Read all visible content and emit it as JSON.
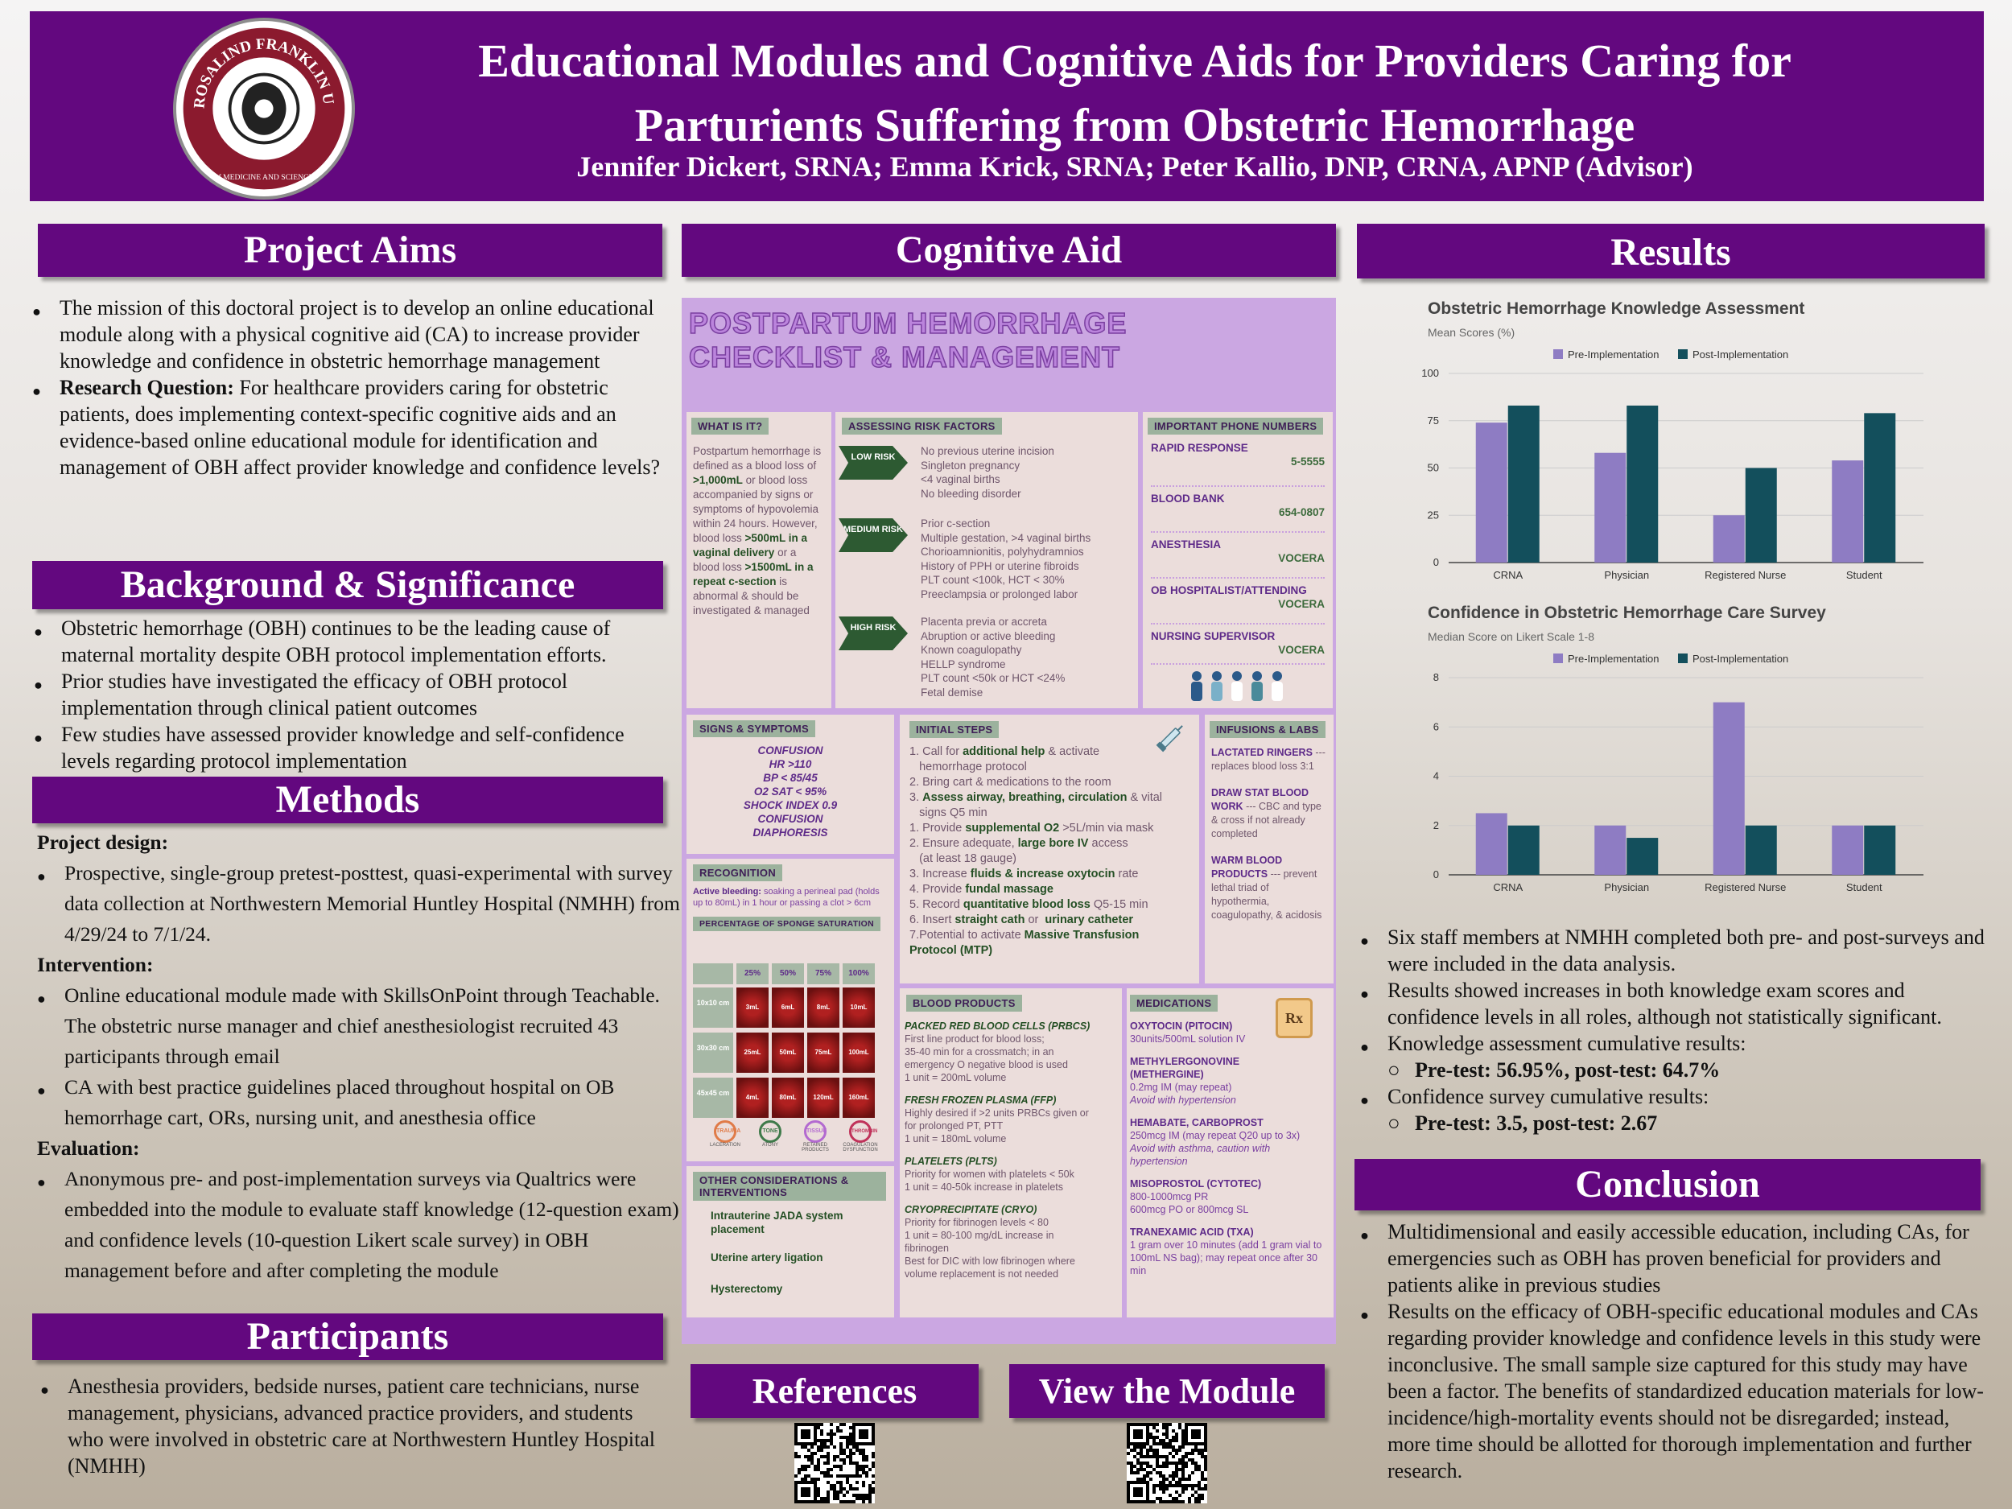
{
  "header": {
    "title_line1": "Educational Modules and Cognitive Aids for Providers Caring for",
    "title_line2": "Parturients Suffering from Obstetric Hemorrhage",
    "authors": "Jennifer Dickert, SRNA; Emma Krick, SRNA; Peter Kallio, DNP, CRNA, APNP (Advisor)",
    "seal_text": "ROSALIND FRANKLIN UNIVERSITY",
    "seal_sub": "of MEDICINE AND SCIENCE",
    "colors": {
      "primary": "#63087f",
      "seal": "#8b1a2e"
    }
  },
  "project_aims": {
    "heading": "Project Aims",
    "mission": "The mission of this doctoral project is to develop an online educational module along with a physical cognitive aid (CA) to increase provider knowledge and confidence in obstetric hemorrhage management",
    "rq_label": "Research Question:",
    "rq_text": " For healthcare providers caring for obstetric patients, does implementing context-specific cognitive aids and an evidence-based online educational module for identification and management of OBH affect provider knowledge and confidence levels?"
  },
  "background": {
    "heading": "Background & Significance",
    "items": [
      "Obstetric hemorrhage (OBH) continues to be the leading cause of maternal mortality despite OBH protocol implementation efforts.",
      "Prior studies have investigated the efficacy of OBH protocol implementation through clinical patient outcomes",
      "Few studies have assessed provider knowledge and self-confidence levels regarding protocol implementation"
    ]
  },
  "methods": {
    "heading": "Methods",
    "design_label": "Project design:",
    "design": "Prospective, single-group pretest-posttest, quasi-experimental with survey data collection at Northwestern Memorial Huntley Hospital (NMHH) from 4/29/24 to 7/1/24.",
    "intervention_label": "Intervention:",
    "intervention": [
      "Online educational module made with SkillsOnPoint through Teachable. The obstetric nurse manager and chief anesthesiologist recruited 43 participants through email",
      "CA with best practice guidelines placed throughout hospital on OB hemorrhage cart, ORs, nursing unit, and anesthesia office"
    ],
    "evaluation_label": "Evaluation:",
    "evaluation": "Anonymous pre- and post-implementation surveys via Qualtrics were embedded into the module to evaluate staff knowledge (12-question exam) and confidence levels (10-question Likert scale survey) in OBH management before and after completing the module"
  },
  "participants": {
    "heading": "Participants",
    "text": "Anesthesia providers, bedside nurses, patient care technicians, nurse management, physicians, advanced practice providers, and students who were involved in obstetric care at Northwestern Huntley Hospital (NMHH)"
  },
  "cognitive_aid": {
    "heading": "Cognitive Aid",
    "title_line1": "POSTPARTUM HEMORRHAGE",
    "title_line2": "CHECKLIST & MANAGEMENT",
    "what": {
      "tag": "WHAT IS IT?",
      "t1": "Postpartum hemorrhage is defined as a blood loss of ",
      "b1": ">1,000mL",
      "t2": " or blood loss accompanied by signs or symptoms of hypovolemia within 24 hours. However, blood loss ",
      "b2": ">500mL in a vaginal delivery",
      "t3": " or a blood loss ",
      "b3": ">1500mL in a repeat c-section",
      "t4": " is abnormal & should be investigated & managed"
    },
    "risk": {
      "tag": "ASSESSING RISK FACTORS",
      "low": {
        "label": "LOW RISK",
        "items": [
          "No previous uterine incision",
          "Singleton pregnancy",
          "<4 vaginal births",
          "No bleeding disorder"
        ]
      },
      "medium": {
        "label": "MEDIUM RISK",
        "items": [
          "Prior c-section",
          "Multiple gestation, >4 vaginal births",
          "Chorioamnionitis, polyhydramnios",
          "History of PPH or uterine fibroids",
          "PLT count <100k, HCT < 30%",
          "Preeclampsia or prolonged labor"
        ]
      },
      "high": {
        "label": "HIGH RISK",
        "items": [
          "Placenta previa or accreta",
          "Abruption or active bleeding",
          "Known coagulopathy",
          "HELLP syndrome",
          "PLT count <50k or HCT <24%",
          "Fetal demise"
        ]
      }
    },
    "phones": {
      "tag": "IMPORTANT PHONE NUMBERS",
      "items": [
        {
          "label": "RAPID RESPONSE",
          "value": "5-5555"
        },
        {
          "label": "BLOOD BANK",
          "value": "654-0807"
        },
        {
          "label": "ANESTHESIA",
          "value": "VOCERA"
        },
        {
          "label": "OB HOSPITALIST/ATTENDING",
          "value": "VOCERA"
        },
        {
          "label": "NURSING SUPERVISOR",
          "value": "VOCERA"
        }
      ]
    },
    "signs": {
      "tag": "SIGNS & SYMPTOMS",
      "items": [
        "CONFUSION",
        "HR >110",
        "BP < 85/45",
        "O2 SAT < 95%",
        "SHOCK INDEX 0.9",
        "CONFUSION",
        "DIAPHORESIS"
      ]
    },
    "initial": {
      "tag": "INITIAL STEPS",
      "lines": [
        [
          "1. Call for ",
          "additional help",
          " & activate"
        ],
        [
          "   hemorrhage protocol",
          "",
          ""
        ],
        [
          "2. Bring cart & medications to the room",
          "",
          ""
        ],
        [
          "3. ",
          "Assess airway, breathing, circulation",
          " & vital"
        ],
        [
          "   signs Q5 min",
          "",
          ""
        ],
        [
          "1. Provide ",
          "supplemental O2",
          " >5L/min via mask"
        ],
        [
          "2. Ensure adequate, ",
          "large bore IV",
          " access"
        ],
        [
          "   (at least 18 gauge)",
          "",
          ""
        ],
        [
          "3. Increase ",
          "fluids & increase oxytocin",
          " rate"
        ],
        [
          "4. Provide ",
          "fundal massage",
          ""
        ],
        [
          "5. Record ",
          "quantitative blood loss",
          " Q5-15 min"
        ],
        [
          "6. Insert ",
          "straight cath",
          " or  "
        ],
        [
          "7.Potential to activate ",
          "Massive Transfusion",
          ""
        ],
        [
          "",
          "Protocol (MTP)",
          ""
        ]
      ],
      "extra": "urinary catheter"
    },
    "infusions": {
      "tag": "INFUSIONS & LABS",
      "items": [
        {
          "name": "LACTATED RINGERS",
          "desc": "--- replaces blood loss 3:1"
        },
        {
          "name": "DRAW STAT BLOOD WORK",
          "desc": "--- CBC and type & cross if not already completed"
        },
        {
          "name": "WARM BLOOD PRODUCTS",
          "desc": "--- prevent lethal triad of hypothermia, coagulopathy, & acidosis"
        }
      ]
    },
    "recognition": {
      "tag": "RECOGNITION",
      "label": "Active bleeding:",
      "text": " soaking  a perineal pad (holds up to 80mL) in 1 hour or passing a clot > 6cm",
      "sponge_tag": "PERCENTAGE OF SPONGE SATURATION",
      "cols": [
        "25%",
        "50%",
        "75%",
        "100%"
      ],
      "rows": [
        {
          "label": "10x10 cm",
          "cells": [
            "3mL",
            "6mL",
            "8mL",
            "10mL"
          ]
        },
        {
          "label": "30x30 cm",
          "cells": [
            "25mL",
            "50mL",
            "75mL",
            "100mL"
          ]
        },
        {
          "label": "45x45 cm",
          "cells": [
            "4mL",
            "80mL",
            "120mL",
            "160mL"
          ]
        }
      ],
      "t_tags": [
        "TRAUMA",
        "TONE",
        "TISSUE",
        "THROMBIN"
      ],
      "t_sub": [
        "LACERATION",
        "ATONY",
        "RETAINED PRODUCTS",
        "COAGULATION DYSFUNCTION"
      ]
    },
    "other": {
      "tag": "OTHER CONSIDERATIONS & INTERVENTIONS",
      "items": [
        "Intrauterine JADA  system placement",
        "Uterine artery ligation",
        "Hysterectomy"
      ]
    },
    "blood": {
      "tag": "BLOOD PRODUCTS",
      "items": [
        {
          "name": "PACKED RED BLOOD CELLS (PRBCS)",
          "lines": [
            "First line product for blood loss;",
            "35-40 min for a crossmatch; in an",
            "emergency O negative blood is used",
            "1 unit = 200mL volume"
          ]
        },
        {
          "name": "FRESH FROZEN PLASMA (FFP)",
          "lines": [
            "Highly desired if >2 units PRBCs given or",
            "for prolonged PT, PTT",
            "1 unit = 180mL volume"
          ]
        },
        {
          "name": "PLATELETS (PLTS)",
          "lines": [
            "Priority for women with platelets < 50k",
            "1 unit = 40-50k increase in platelets"
          ]
        },
        {
          "name": "CRYOPRECIPITATE (CRYO)",
          "lines": [
            "Priority for fibrinogen levels < 80",
            "1 unit = 80-100 mg/dL increase in",
            "fibrinogen",
            "Best for DIC with low fibrinogen where",
            "volume replacement is not needed"
          ]
        }
      ]
    },
    "meds": {
      "tag": "MEDICATIONS",
      "items": [
        {
          "name": "OXYTOCIN (PITOCIN)",
          "lines": [
            "30units/500mL solution IV"
          ],
          "warn": ""
        },
        {
          "name": "METHYLERGONOVINE (METHERGINE)",
          "lines": [
            "0.2mg IM (may repeat)"
          ],
          "warn": "Avoid with hypertension"
        },
        {
          "name": "HEMABATE, CARBOPROST",
          "lines": [
            "250mcg IM (may repeat Q20 up to 3x)"
          ],
          "warn": "Avoid with asthma, caution with hypertension"
        },
        {
          "name": "MISOPROSTOL (CYTOTEC)",
          "lines": [
            "800-1000mcg PR",
            "600mcg PO or  800mcg SL"
          ],
          "warn": ""
        },
        {
          "name": "TRANEXAMIC ACID (TXA)",
          "lines": [
            "1 gram over 10 minutes (add 1 gram vial to 100mL NS bag); may repeat once after 30 min"
          ],
          "warn": ""
        }
      ],
      "rx": "Rx"
    }
  },
  "references": {
    "heading": "References"
  },
  "module": {
    "heading": "View the Module"
  },
  "results": {
    "heading": "Results",
    "items": [
      "Six staff members at NMHH completed both pre- and post-surveys and were included in the data analysis.",
      "Results showed increases in both knowledge exam scores and confidence levels in all roles, although not statistically significant.",
      "Knowledge assessment cumulative results:"
    ],
    "sub1": "Pre-test: 56.95%, post-test: 64.7%",
    "item4": "Confidence survey cumulative results:",
    "sub2": "Pre-test: 3.5, post-test: 2.67"
  },
  "conclusion": {
    "heading": "Conclusion",
    "items": [
      "Multidimensional and easily accessible education, including CAs, for emergencies such as OBH has proven beneficial for providers and patients alike in previous studies",
      "Results on the efficacy of OBH-specific educational modules and CAs regarding provider knowledge and confidence levels in this study were inconclusive. The small sample size captured for this study may have been a factor. The benefits of standardized education materials for low-incidence/high-mortality events should not be disregarded; instead, more time should be allotted for thorough implementation and further research."
    ]
  },
  "chart_data": [
    {
      "type": "bar",
      "title": "Obstetric Hemorrhage Knowledge Assessment",
      "subtitle": "Mean Scores (%)",
      "categories": [
        "CRNA",
        "Physician",
        "Registered Nurse",
        "Student"
      ],
      "series": [
        {
          "name": "Pre-Implementation",
          "values": [
            74,
            58,
            25,
            54
          ],
          "color": "#8e7cc3"
        },
        {
          "name": "Post-Implementation",
          "values": [
            83,
            83,
            50,
            79
          ],
          "color": "#134f5c"
        }
      ],
      "ylim": [
        0,
        100
      ],
      "yticks": [
        0,
        25,
        50,
        75,
        100
      ],
      "legend": "top",
      "grid": true
    },
    {
      "type": "bar",
      "title": "Confidence in Obstetric Hemorrhage Care Survey",
      "subtitle": "Median Score on Likert Scale 1-8",
      "categories": [
        "CRNA",
        "Physician",
        "Registered Nurse",
        "Student"
      ],
      "series": [
        {
          "name": "Pre-Implementation",
          "values": [
            2.5,
            2,
            7,
            2
          ],
          "color": "#8e7cc3"
        },
        {
          "name": "Post-Implementation",
          "values": [
            2,
            1.5,
            2,
            2
          ],
          "color": "#134f5c"
        }
      ],
      "ylim": [
        0,
        8
      ],
      "yticks": [
        0,
        2,
        4,
        6,
        8
      ],
      "legend": "top",
      "grid": true
    }
  ]
}
